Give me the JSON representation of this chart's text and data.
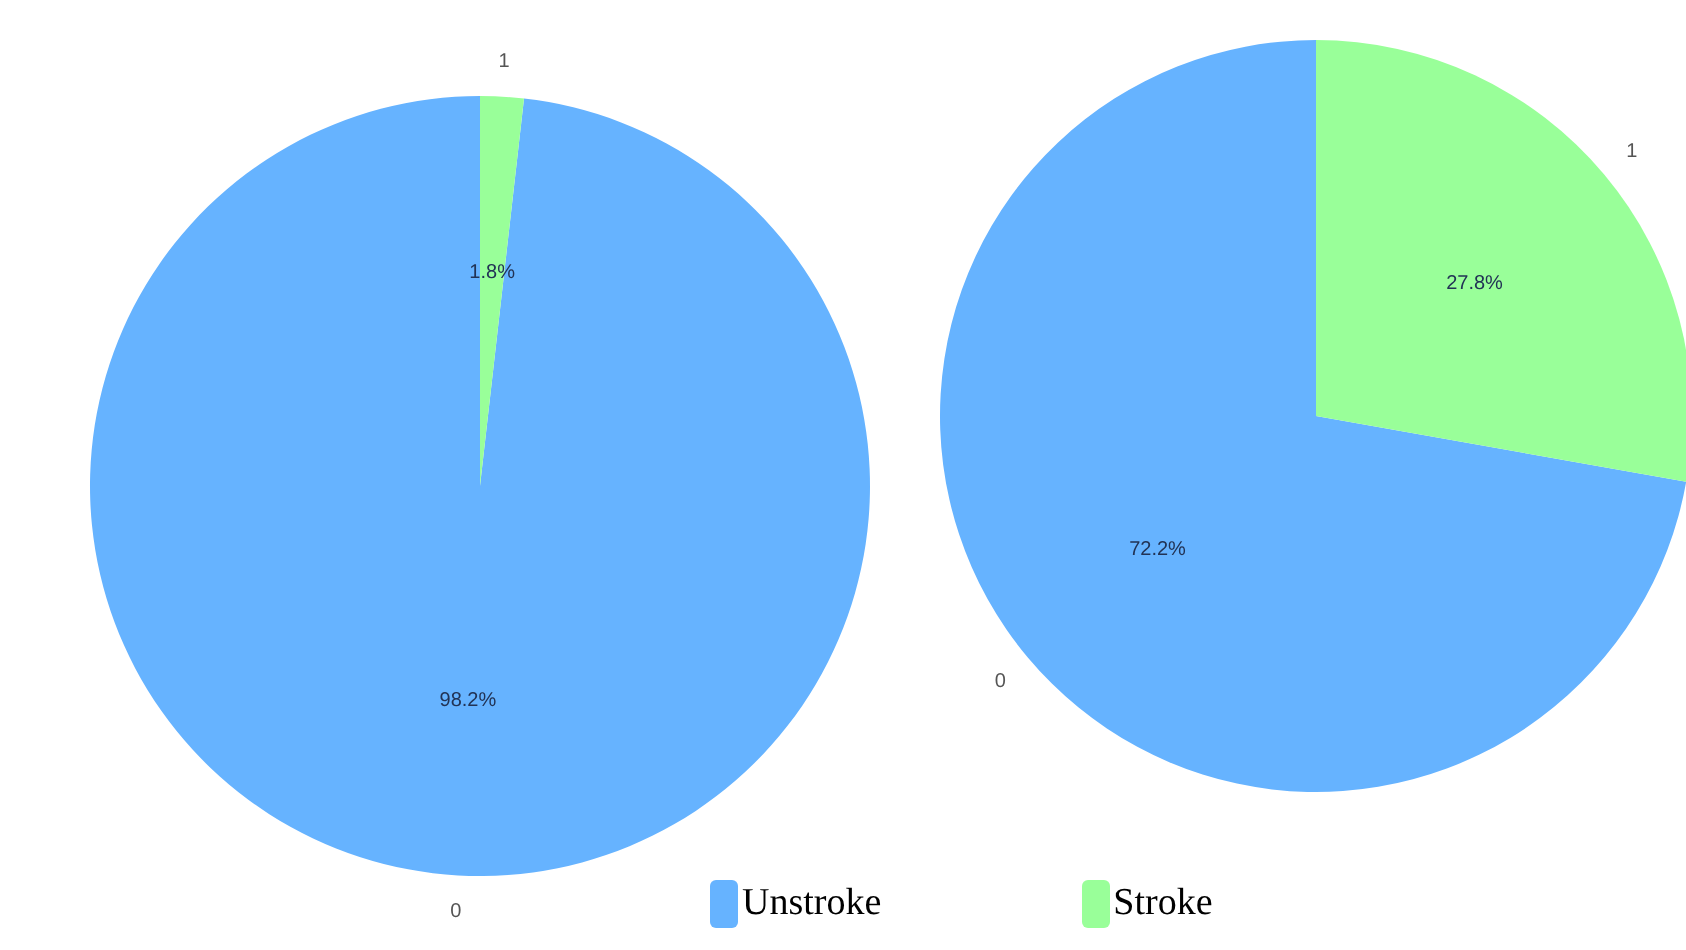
{
  "chart_data": [
    {
      "type": "pie",
      "categories": [
        "0",
        "1"
      ],
      "values": [
        98.2,
        1.8
      ],
      "colors": [
        "#66b3ff",
        "#99ff99"
      ],
      "value_labels": [
        "98.2%",
        "1.8%"
      ]
    },
    {
      "type": "pie",
      "categories": [
        "0",
        "1"
      ],
      "values": [
        72.2,
        27.8
      ],
      "colors": [
        "#66b3ff",
        "#99ff99"
      ],
      "value_labels": [
        "72.2%",
        "27.8%"
      ],
      "annotations": [
        "Unstroke",
        "Stroke"
      ]
    }
  ]
}
